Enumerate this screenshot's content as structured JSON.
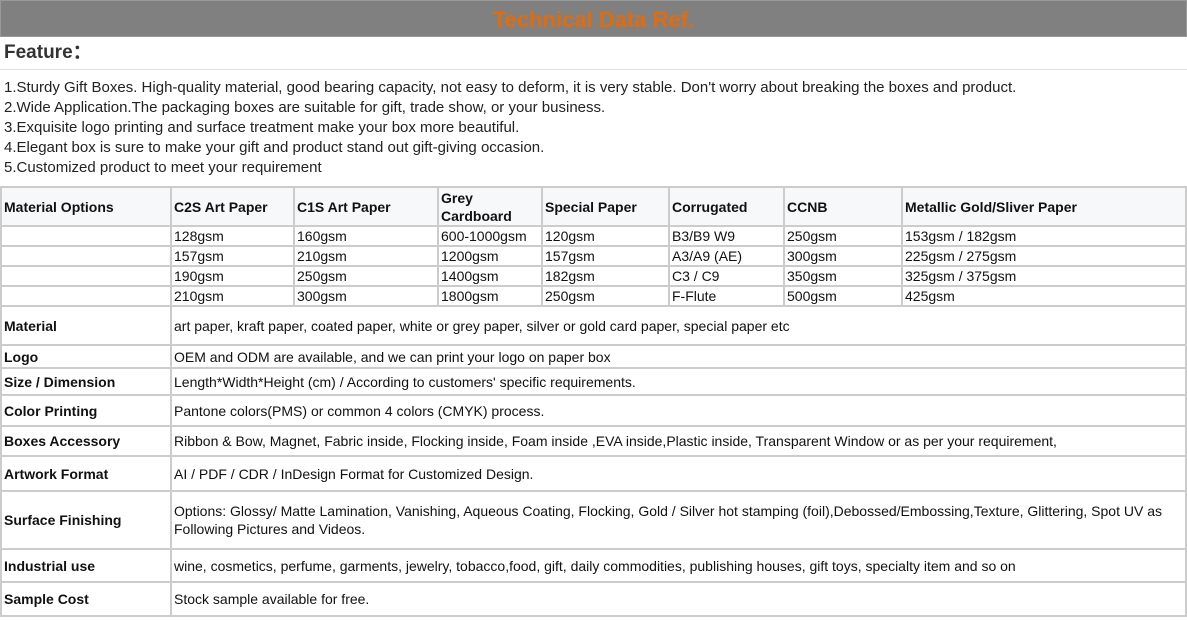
{
  "title": "Technical Data Ref.",
  "feature_heading": "Feature：",
  "features": [
    "1.Sturdy Gift Boxes. High-quality material, good bearing capacity, not easy to deform, it is very stable. Don't worry about breaking the boxes and product.",
    "2.Wide Application.The packaging boxes are suitable for gift, trade show, or your business.",
    "3.Exquisite logo printing and surface treatment make your box more beautiful.",
    "4.Elegant box is sure to make your gift and product stand out gift-giving occasion.",
    "5.Customized product to meet your requirement"
  ],
  "material_options": {
    "headers": [
      "Material Options",
      "C2S Art Paper",
      "C1S Art Paper",
      "Grey Cardboard",
      "Special Paper",
      "Corrugated",
      "CCNB",
      "Metallic Gold/Sliver Paper"
    ],
    "rows": [
      [
        "",
        "128gsm",
        "160gsm",
        "600-1000gsm",
        "120gsm",
        "B3/B9 W9",
        "250gsm",
        "153gsm / 182gsm"
      ],
      [
        "",
        "157gsm",
        "210gsm",
        "1200gsm",
        "157gsm",
        "A3/A9 (AE)",
        "300gsm",
        "225gsm / 275gsm"
      ],
      [
        "",
        "190gsm",
        "250gsm",
        "1400gsm",
        "182gsm",
        "C3 / C9",
        "350gsm",
        "325gsm / 375gsm"
      ],
      [
        "",
        "210gsm",
        "300gsm",
        "1800gsm",
        "250gsm",
        "F-Flute",
        "500gsm",
        "425gsm"
      ]
    ]
  },
  "specs": [
    {
      "label": "Material",
      "value": "art paper, kraft paper, coated paper, white or grey paper, silver or gold card paper, special paper etc"
    },
    {
      "label": "Logo",
      "value": "OEM and ODM are available, and we can print your logo on paper box"
    },
    {
      "label": "Size / Dimension",
      "value": "Length*Width*Height (cm) / According to customers' specific requirements."
    },
    {
      "label": "Color Printing",
      "value": "Pantone colors(PMS) or common 4 colors (CMYK) process."
    },
    {
      "label": "Boxes Accessory",
      "value": "Ribbon & Bow, Magnet, Fabric inside, Flocking inside, Foam inside ,EVA inside,Plastic inside, Transparent Window or as per your requirement,"
    },
    {
      "label": "Artwork Format",
      "value": "AI / PDF / CDR / InDesign Format for Customized Design."
    },
    {
      "label": "Surface Finishing",
      "value": "Options: Glossy/ Matte Lamination, Vanishing, Aqueous Coating, Flocking, Gold / Silver hot stamping (foil),Debossed/Embossing,Texture, Glittering, Spot UV as Following Pictures and Videos."
    },
    {
      "label": "Industrial use",
      "value": "wine, cosmetics, perfume, garments, jewelry, tobacco,food, gift, daily commodities, publishing houses, gift toys, specialty item and so on"
    },
    {
      "label": "Sample Cost",
      "value": "Stock sample available for free."
    }
  ]
}
